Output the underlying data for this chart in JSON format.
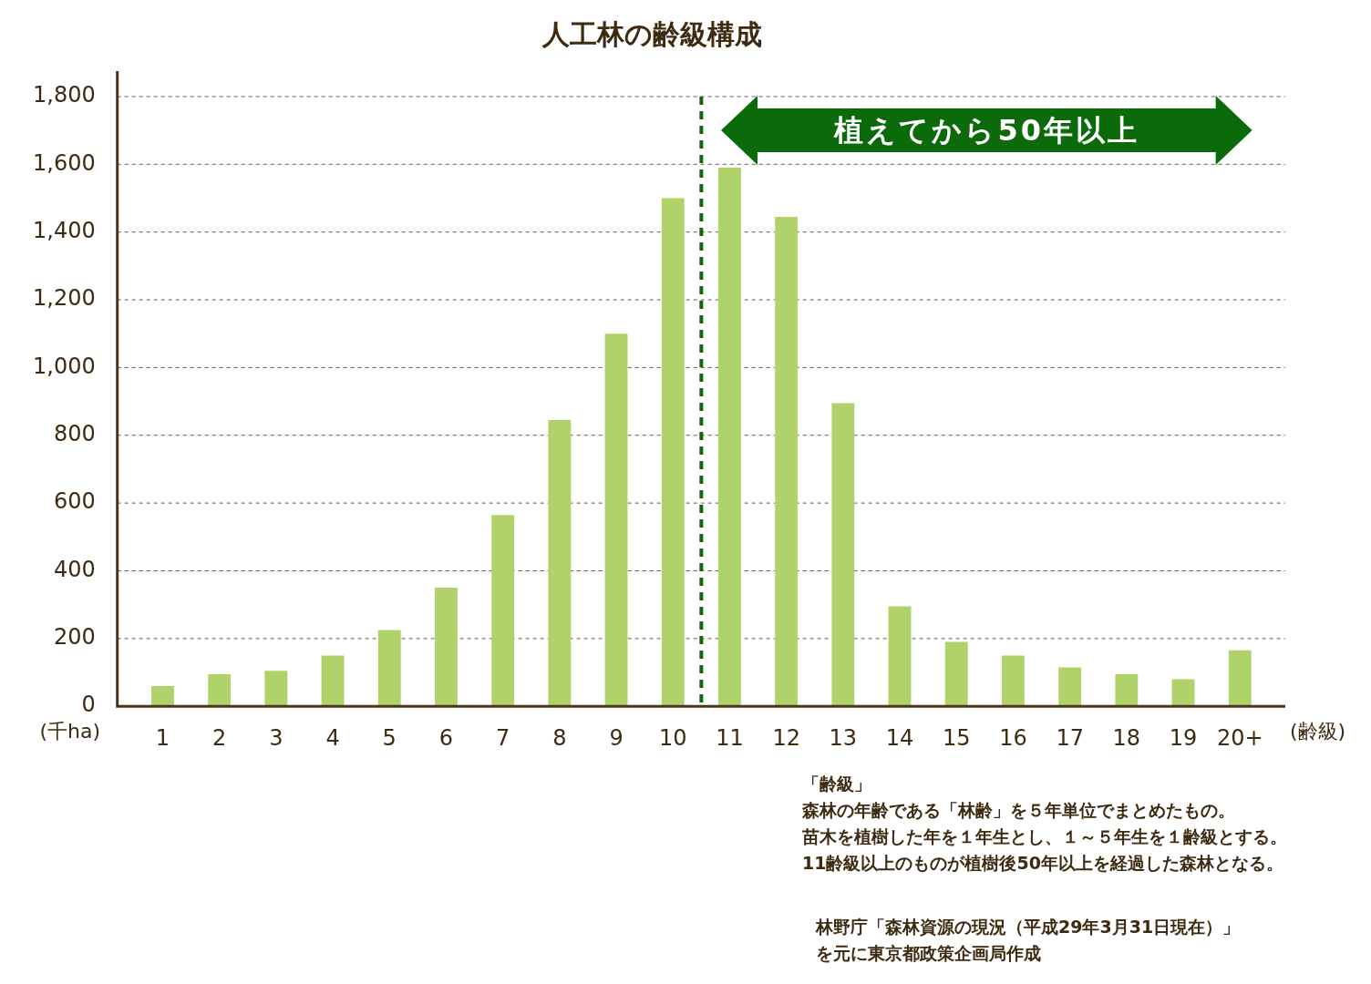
{
  "chart_data": {
    "type": "bar",
    "title": "人工林の齢級構成",
    "xlabel": "(齢級)",
    "ylabel": "(千ha)",
    "x": [
      1,
      2,
      3,
      4,
      5,
      6,
      7,
      8,
      9,
      10,
      11,
      12,
      13,
      14,
      15,
      16,
      17,
      18,
      19,
      20
    ],
    "values": [
      60,
      95,
      105,
      150,
      225,
      350,
      565,
      845,
      1100,
      1500,
      1590,
      1445,
      895,
      295,
      190,
      150,
      115,
      95,
      80,
      165
    ],
    "color": "#afd36a",
    "xlim": [
      0.2,
      20.8
    ],
    "xticks": [
      1,
      2,
      3,
      4,
      5,
      6,
      7,
      8,
      9,
      10,
      11,
      12,
      13,
      14,
      15,
      16,
      17,
      18,
      19,
      {
        "value": 20,
        "label": "20+"
      }
    ],
    "ylim": [
      0,
      1800
    ],
    "yticks": [
      0,
      {
        "value": 200,
        "label": "200"
      },
      {
        "value": 400,
        "label": "400"
      },
      {
        "value": 600,
        "label": "600"
      },
      {
        "value": 800,
        "label": "800"
      },
      {
        "value": 1000,
        "label": "1,000"
      },
      {
        "value": 1200,
        "label": "1,200"
      },
      {
        "value": 1400,
        "label": "1,400"
      },
      {
        "value": 1600,
        "label": "1,600"
      },
      {
        "value": 1800,
        "label": "1,800"
      }
    ],
    "grid": "y",
    "ref_lines": [
      {
        "axis": "x",
        "value": 10.5,
        "color": "#0b6b0b",
        "line_style": "dashed"
      }
    ],
    "annotations": [
      "植えてから50年以上",
      "「齢級」",
      "森林の年齢である「林齢」を５年単位でまとめたもの。",
      "苗木を植樹した年を１年生とし、１～５年生を１齢級とする。",
      "11齢級以上のものが植樹後50年以上を経過した森林となる。",
      "林野庁「森林資源の現況（平成29年3月31日現在）」",
      "を元に東京都政策企画局作成"
    ]
  }
}
